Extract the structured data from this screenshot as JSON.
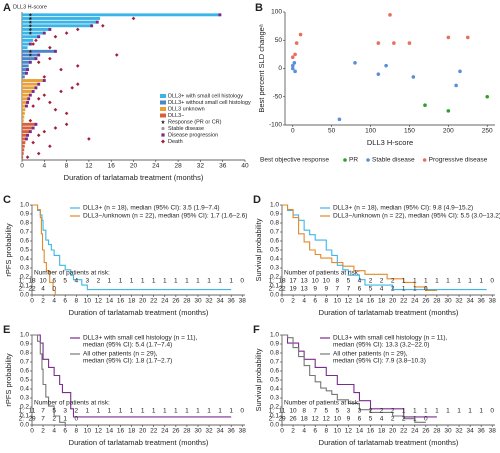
{
  "chart_data": [
    {
      "type": "swimmer",
      "panel": "A",
      "ylabel": "DLL3 H-score",
      "xlabel": "Duration of tarlatamab treatment (months)",
      "xlim": [
        0,
        40
      ],
      "xticks": [
        0,
        4,
        8,
        12,
        16,
        20,
        24,
        28,
        32,
        36,
        40
      ],
      "markers": {
        "response": {
          "name": "Response (PR or CR)",
          "color": "#222222"
        },
        "stable": {
          "name": "Stable disease",
          "color": "#999999"
        },
        "progression": {
          "name": "Disease progression",
          "color": "#7a2a8a"
        },
        "death": {
          "name": "Death",
          "color": "#a3203a"
        }
      },
      "series": [
        {
          "name": "DLL3+ with small cell histology",
          "color": "#3cb4e6",
          "values": [
            35.5,
            14,
            13.5,
            12.5,
            5,
            4,
            3,
            2,
            1.5,
            1
          ],
          "response_x": [
            1.5,
            1.5,
            1.5,
            1.5,
            1.5,
            1.5,
            null,
            null,
            null,
            null
          ],
          "progression_x": [
            35.5,
            null,
            13.5,
            12.5,
            5,
            4,
            3,
            null,
            1.5,
            null
          ],
          "death_x": [
            null,
            20,
            null,
            14.5,
            10,
            8,
            6,
            2.5,
            2,
            5
          ]
        },
        {
          "name": "DLL3+ without small cell histology",
          "color": "#4a86c8",
          "values": [
            6,
            3,
            2.5,
            1.5,
            1.2,
            1,
            0.8,
            0.5
          ],
          "response_x": [
            1.5,
            1.5,
            null,
            null,
            null,
            null,
            null,
            null
          ],
          "progression_x": [
            6,
            3,
            2.5,
            1.5,
            null,
            1,
            0.8,
            null
          ],
          "death_x": [
            null,
            17,
            5,
            3,
            10,
            7,
            null,
            4
          ]
        },
        {
          "name": "DLL3 unknown",
          "color": "#e8a13a",
          "values": [
            4,
            3,
            2.5,
            2,
            1.5,
            1.2,
            1,
            0.8,
            0.6,
            0.5,
            0.4,
            0.3
          ],
          "progression_x": [
            4,
            3,
            2.5,
            2,
            1.5,
            1.2,
            1,
            0.8,
            null,
            null,
            null,
            null
          ],
          "death_x": [
            null,
            10,
            9,
            7,
            4,
            3,
            5,
            2,
            6,
            8,
            null,
            1.5
          ]
        },
        {
          "name": "DLL3−",
          "color": "#d9603b",
          "values": [
            2.5,
            2,
            1.5,
            1,
            0.8,
            0.6,
            0.5,
            0.4,
            0.3,
            0.2
          ],
          "progression_x": [
            2.5,
            2,
            1.5,
            1,
            0.8,
            null,
            null,
            null,
            null,
            null
          ],
          "death_x": [
            8,
            6,
            4,
            3,
            12,
            2,
            5,
            null,
            3,
            1
          ]
        }
      ]
    },
    {
      "type": "scatter",
      "panel": "B",
      "xlabel": "DLL3 H-score",
      "ylabel": "Best percent SLD changeᵃ",
      "legend_title": "Best objective response",
      "xlim": [
        -10,
        260
      ],
      "xticks": [
        0,
        50,
        100,
        150,
        200,
        250
      ],
      "ylim": [
        -100,
        100
      ],
      "yticks": [
        -100,
        -50,
        0,
        50,
        100
      ],
      "series": [
        {
          "name": "PR",
          "color": "#2ca02c",
          "x": [
            170,
            200,
            250
          ],
          "values": [
            -65,
            -75,
            -50
          ]
        },
        {
          "name": "Stable disease",
          "color": "#5b8fd6",
          "x": [
            0,
            0,
            2,
            3,
            60,
            80,
            110,
            120,
            155,
            210,
            215
          ],
          "values": [
            0,
            5,
            10,
            -5,
            -90,
            10,
            -10,
            5,
            -15,
            -30,
            -5
          ]
        },
        {
          "name": "Progressive disease",
          "color": "#e8705a",
          "x": [
            0,
            3,
            5,
            10,
            110,
            125,
            130,
            150,
            200,
            225
          ],
          "values": [
            20,
            25,
            45,
            60,
            45,
            95,
            45,
            45,
            55,
            55
          ]
        }
      ]
    },
    {
      "type": "km",
      "panel": "C",
      "ylabel": "rPFS probability",
      "xlabel": "Duration of tarlatamab treatment (months)",
      "xlim": [
        0,
        38.5
      ],
      "xticks": [
        0,
        2,
        4,
        6,
        8,
        10,
        12,
        14,
        16,
        18,
        20,
        22,
        24,
        26,
        28,
        30,
        32,
        34,
        36,
        38
      ],
      "ylim": [
        0,
        1
      ],
      "yticks": [
        {
          "value": 0,
          "label": "0.0"
        },
        {
          "value": 0.1,
          "label": "0.1"
        },
        {
          "value": 0.2,
          "label": "0.2"
        },
        {
          "value": 0.3,
          "label": "0.3"
        },
        {
          "value": 0.4,
          "label": "0.4"
        },
        {
          "value": 0.5,
          "label": "0.5"
        },
        {
          "value": 0.6,
          "label": "0.6"
        },
        {
          "value": 0.7,
          "label": "0.7"
        },
        {
          "value": 0.8,
          "label": "0.8"
        },
        {
          "value": 0.9,
          "label": "0.9"
        },
        {
          "value": 1,
          "label": "1.0"
        }
      ],
      "series": [
        {
          "name": "DLL3+ (n = 18), median (95% CI): 3.5 (1.9–7.4)",
          "color": "#3eb6e8",
          "x": [
            0,
            1,
            1.5,
            1.8,
            2,
            2.5,
            3,
            3.5,
            4,
            5,
            6,
            7,
            7.5,
            9,
            10,
            36
          ],
          "values": [
            1,
            0.94,
            0.89,
            0.83,
            0.72,
            0.61,
            0.56,
            0.5,
            0.44,
            0.33,
            0.28,
            0.22,
            0.17,
            0.11,
            0.06,
            0.06
          ]
        },
        {
          "name": "DLL3−/unknown (n = 22), median (95% CI): 1.7 (1.6–2.6)",
          "color": "#e08a2c",
          "x": [
            0,
            1,
            1.5,
            1.7,
            1.9,
            2.2,
            2.6,
            3.2,
            3.8,
            4.2
          ],
          "values": [
            1,
            0.95,
            0.86,
            0.68,
            0.5,
            0.36,
            0.27,
            0.14,
            0.05,
            0
          ]
        }
      ],
      "risk_table": {
        "title": "Number of patients at risk:",
        "rows": [
          {
            "label": "1:",
            "color": "#3eb6e8",
            "counts": [
              18,
              10,
              6,
              5,
              4,
              3,
              2,
              1,
              1,
              1,
              1,
              1,
              1,
              1,
              1,
              1,
              1,
              1,
              1,
              0
            ]
          },
          {
            "label": "2:",
            "color": "#e08a2c",
            "counts": [
              22,
              4,
              0
            ]
          }
        ]
      }
    },
    {
      "type": "km",
      "panel": "D",
      "ylabel": "Survival probability",
      "xlabel": "Duration of tarlatamab treatment (months)",
      "xlim": [
        0,
        38.5
      ],
      "xticks": [
        0,
        2,
        4,
        6,
        8,
        10,
        12,
        14,
        16,
        18,
        20,
        22,
        24,
        26,
        28,
        30,
        32,
        34,
        36,
        38
      ],
      "ylim": [
        0,
        1
      ],
      "yticks": [
        {
          "value": 0,
          "label": "0.0"
        },
        {
          "value": 0.1,
          "label": "0.1"
        },
        {
          "value": 0.2,
          "label": "0.2"
        },
        {
          "value": 0.3,
          "label": "0.3"
        },
        {
          "value": 0.4,
          "label": "0.4"
        },
        {
          "value": 0.5,
          "label": "0.5"
        },
        {
          "value": 0.6,
          "label": "0.6"
        },
        {
          "value": 0.7,
          "label": "0.7"
        },
        {
          "value": 0.8,
          "label": "0.8"
        },
        {
          "value": 0.9,
          "label": "0.9"
        },
        {
          "value": 1,
          "label": "1.0"
        }
      ],
      "series": [
        {
          "name": "DLL3+ (n = 18), median (95% CI): 9.8 (4.9–15.2)",
          "color": "#3eb6e8",
          "x": [
            0,
            1,
            2,
            3,
            4,
            5,
            6,
            8,
            9,
            10,
            11,
            12,
            14,
            15,
            18,
            20,
            37
          ],
          "values": [
            1,
            0.94,
            0.89,
            0.83,
            0.72,
            0.67,
            0.61,
            0.5,
            0.44,
            0.33,
            0.28,
            0.22,
            0.17,
            0.11,
            0.11,
            0.06,
            0.06
          ]
        },
        {
          "name": "DLL3−/unknown (n = 22), median (95% CI): 5.5 (3.0–13.2)",
          "color": "#e08a2c",
          "x": [
            0,
            1,
            2,
            3,
            4,
            5,
            6,
            7,
            9,
            11,
            13,
            15,
            19,
            22,
            24,
            26,
            28
          ],
          "values": [
            1,
            0.95,
            0.86,
            0.68,
            0.59,
            0.5,
            0.45,
            0.41,
            0.36,
            0.32,
            0.27,
            0.23,
            0.18,
            0.14,
            0.09,
            0.05,
            0.05
          ]
        }
      ],
      "risk_table": {
        "title": "Number of patients at risk:",
        "rows": [
          {
            "label": "1:",
            "color": "#3eb6e8",
            "counts": [
              18,
              17,
              13,
              10,
              10,
              8,
              5,
              4,
              2,
              2,
              2,
              1,
              1,
              1,
              1,
              1,
              1,
              1,
              1,
              0
            ]
          },
          {
            "label": "2:",
            "color": "#e08a2c",
            "counts": [
              22,
              19,
              13,
              9,
              9,
              7,
              7,
              6,
              5,
              4,
              2,
              1,
              1,
              0
            ]
          }
        ]
      }
    },
    {
      "type": "km",
      "panel": "E",
      "ylabel": "rPFS probability",
      "xlabel": "Duration of tarlatamab treatment (months)",
      "xlim": [
        0,
        38.5
      ],
      "xticks": [
        0,
        2,
        4,
        6,
        8,
        10,
        12,
        14,
        16,
        18,
        20,
        22,
        24,
        26,
        28,
        30,
        32,
        34,
        36,
        38
      ],
      "ylim": [
        0,
        1
      ],
      "yticks": [
        {
          "value": 0,
          "label": "0.0"
        },
        {
          "value": 0.1,
          "label": "0.1"
        },
        {
          "value": 0.2,
          "label": "0.2"
        },
        {
          "value": 0.3,
          "label": "0.3"
        },
        {
          "value": 0.4,
          "label": "0.4"
        },
        {
          "value": 0.5,
          "label": "0.5"
        },
        {
          "value": 0.6,
          "label": "0.6"
        },
        {
          "value": 0.7,
          "label": "0.7"
        },
        {
          "value": 0.8,
          "label": "0.8"
        },
        {
          "value": 0.9,
          "label": "0.9"
        },
        {
          "value": 1,
          "label": "1.0"
        }
      ],
      "series": [
        {
          "name": "DLL3+ with small cell histology (n = 11),",
          "detail": "median (95% CI): 5.4 (1.7–7.4)",
          "color": "#7b2d8e",
          "x": [
            0,
            1.5,
            2,
            3,
            4,
            5,
            5.5,
            7,
            7.5,
            36
          ],
          "values": [
            1,
            0.91,
            0.73,
            0.64,
            0.55,
            0.45,
            0.36,
            0.18,
            0.09,
            0.09
          ]
        },
        {
          "name": "All other patients (n = 29),",
          "detail": "median (95% CI): 1.8 (1.7–2.7)",
          "color": "#777777",
          "x": [
            0,
            1,
            1.5,
            1.8,
            2,
            2.5,
            3,
            4,
            5,
            6
          ],
          "values": [
            1,
            0.93,
            0.79,
            0.62,
            0.45,
            0.31,
            0.21,
            0.1,
            0.03,
            0
          ]
        }
      ],
      "risk_table": {
        "title": "Number of patients at risk:",
        "rows": [
          {
            "label": "1:",
            "color": "#7b2d8e",
            "counts": [
              11,
              7,
              5,
              3,
              2,
              1,
              1,
              1,
              1,
              1,
              1,
              1,
              1,
              1,
              1,
              1,
              1,
              1,
              1,
              0
            ]
          },
          {
            "label": "2:",
            "color": "#777777",
            "counts": [
              29,
              7,
              2,
              1,
              0
            ]
          }
        ]
      }
    },
    {
      "type": "km",
      "panel": "F",
      "ylabel": "Survival probability",
      "xlabel": "Duration of tarlatamab treatment (months)",
      "xlim": [
        0,
        38.5
      ],
      "xticks": [
        0,
        2,
        4,
        6,
        8,
        10,
        12,
        14,
        16,
        18,
        20,
        22,
        24,
        26,
        28,
        30,
        32,
        34,
        36,
        38
      ],
      "ylim": [
        0,
        1
      ],
      "yticks": [
        {
          "value": 0,
          "label": "0.0"
        },
        {
          "value": 0.1,
          "label": "0.1"
        },
        {
          "value": 0.2,
          "label": "0.2"
        },
        {
          "value": 0.3,
          "label": "0.3"
        },
        {
          "value": 0.4,
          "label": "0.4"
        },
        {
          "value": 0.5,
          "label": "0.5"
        },
        {
          "value": 0.6,
          "label": "0.6"
        },
        {
          "value": 0.7,
          "label": "0.7"
        },
        {
          "value": 0.8,
          "label": "0.8"
        },
        {
          "value": 0.9,
          "label": "0.9"
        },
        {
          "value": 1,
          "label": "1.0"
        }
      ],
      "series": [
        {
          "name": "DLL3+ with small cell histology (n = 11),",
          "detail": "median (95% CI): 13.3 (3.2–22.0)",
          "color": "#7b2d8e",
          "x": [
            0,
            1,
            2,
            3,
            4,
            6,
            8,
            10,
            13,
            14,
            16,
            18,
            22,
            28
          ],
          "values": [
            1,
            0.91,
            0.91,
            0.82,
            0.73,
            0.64,
            0.55,
            0.45,
            0.36,
            0.27,
            0.18,
            0.18,
            0.09,
            0.09
          ]
        },
        {
          "name": "All other patients (n = 29),",
          "detail": "median (95% CI): 7.9 (3.8–10.3)",
          "color": "#777777",
          "x": [
            0,
            1,
            2,
            3,
            4,
            5,
            6,
            7,
            8,
            9,
            10,
            12,
            14,
            16,
            18,
            20,
            22,
            24,
            26
          ],
          "values": [
            1,
            0.97,
            0.86,
            0.76,
            0.66,
            0.55,
            0.48,
            0.41,
            0.38,
            0.34,
            0.28,
            0.24,
            0.17,
            0.14,
            0.14,
            0.1,
            0.07,
            0.03,
            0.03
          ]
        }
      ],
      "risk_table": {
        "title": "Number of patients at risk:",
        "rows": [
          {
            "label": "1:",
            "color": "#7b2d8e",
            "counts": [
              11,
              10,
              8,
              7,
              5,
              5,
              3,
              3,
              2,
              2,
              2,
              1,
              1,
              1,
              1,
              1,
              1,
              1,
              1,
              0
            ]
          },
          {
            "label": "2:",
            "color": "#777777",
            "counts": [
              29,
              26,
              18,
              12,
              12,
              10,
              9,
              6,
              5,
              4,
              2,
              2,
              1,
              0
            ]
          }
        ]
      }
    }
  ]
}
